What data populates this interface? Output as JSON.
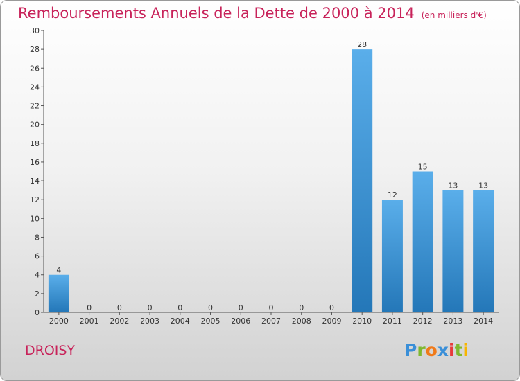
{
  "header": {
    "title": "Remboursements Annuels de la Dette de 2000 à 2014",
    "subtitle": "(en milliers d'€)"
  },
  "commune": "DROISY",
  "logo": {
    "text": "Proxiti"
  },
  "colors": {
    "accent": "#c8235a",
    "bar_top": "#5aaeea",
    "bar_bottom": "#2477b8"
  },
  "chart_data": {
    "type": "bar",
    "title": "Remboursements Annuels de la Dette de 2000 à 2014",
    "subtitle": "(en milliers d'€)",
    "categories": [
      "2000",
      "2001",
      "2002",
      "2003",
      "2004",
      "2005",
      "2006",
      "2007",
      "2008",
      "2009",
      "2010",
      "2011",
      "2012",
      "2013",
      "2014"
    ],
    "values": [
      4,
      0,
      0,
      0,
      0,
      0,
      0,
      0,
      0,
      0,
      28,
      12,
      15,
      13,
      13
    ],
    "yticks": [
      0,
      2,
      4,
      6,
      8,
      10,
      12,
      14,
      16,
      18,
      20,
      22,
      24,
      26,
      28,
      30
    ],
    "ylim": [
      0,
      30
    ],
    "grid": false,
    "legend": "none"
  }
}
